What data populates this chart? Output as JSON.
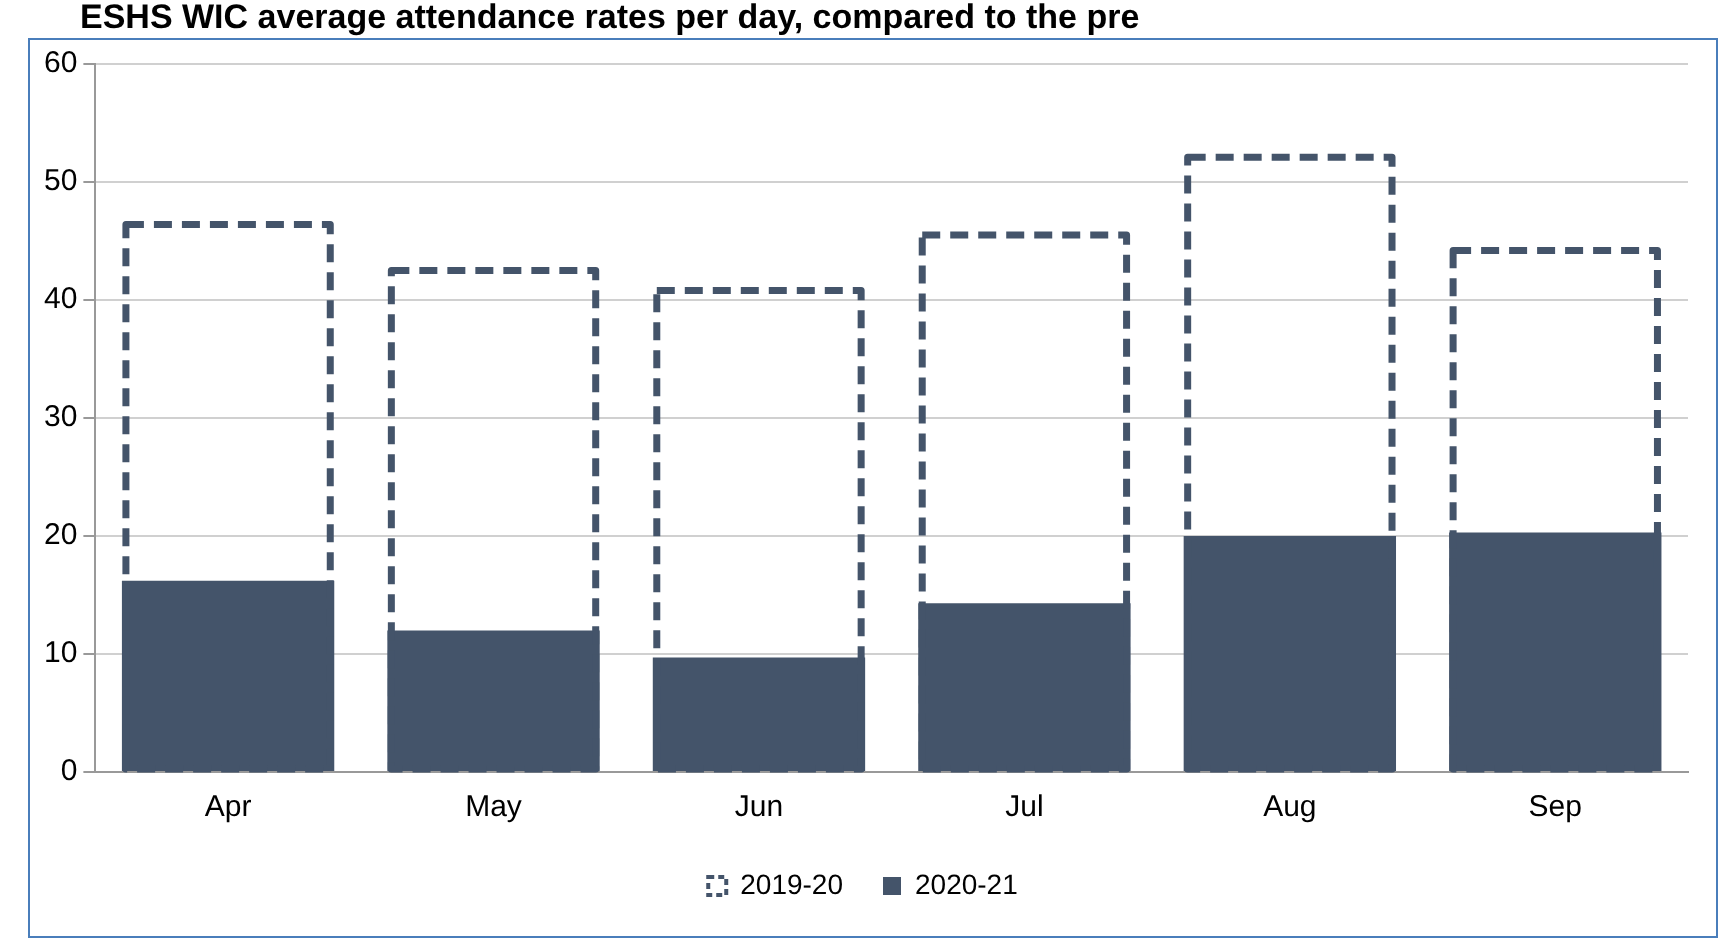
{
  "chart_data": {
    "type": "bar",
    "title": "ESHS WIC average attendance rates per day, compared to the pre",
    "categories": [
      "Apr",
      "May",
      "Jun",
      "Jul",
      "Aug",
      "Sep"
    ],
    "series": [
      {
        "name": "2019-20",
        "color": "#44546a",
        "line_style": "dashed",
        "values": [
          46.4,
          42.5,
          40.8,
          45.5,
          52.1,
          44.2
        ]
      },
      {
        "name": "2020-21",
        "color": "#44546a",
        "values": [
          16.2,
          12.0,
          9.7,
          14.3,
          20.0,
          20.3
        ]
      }
    ],
    "ylim": [
      0,
      60
    ],
    "yticks": [
      0,
      10,
      20,
      30,
      40,
      50,
      60
    ],
    "grid": "y",
    "legend": "bottom"
  }
}
